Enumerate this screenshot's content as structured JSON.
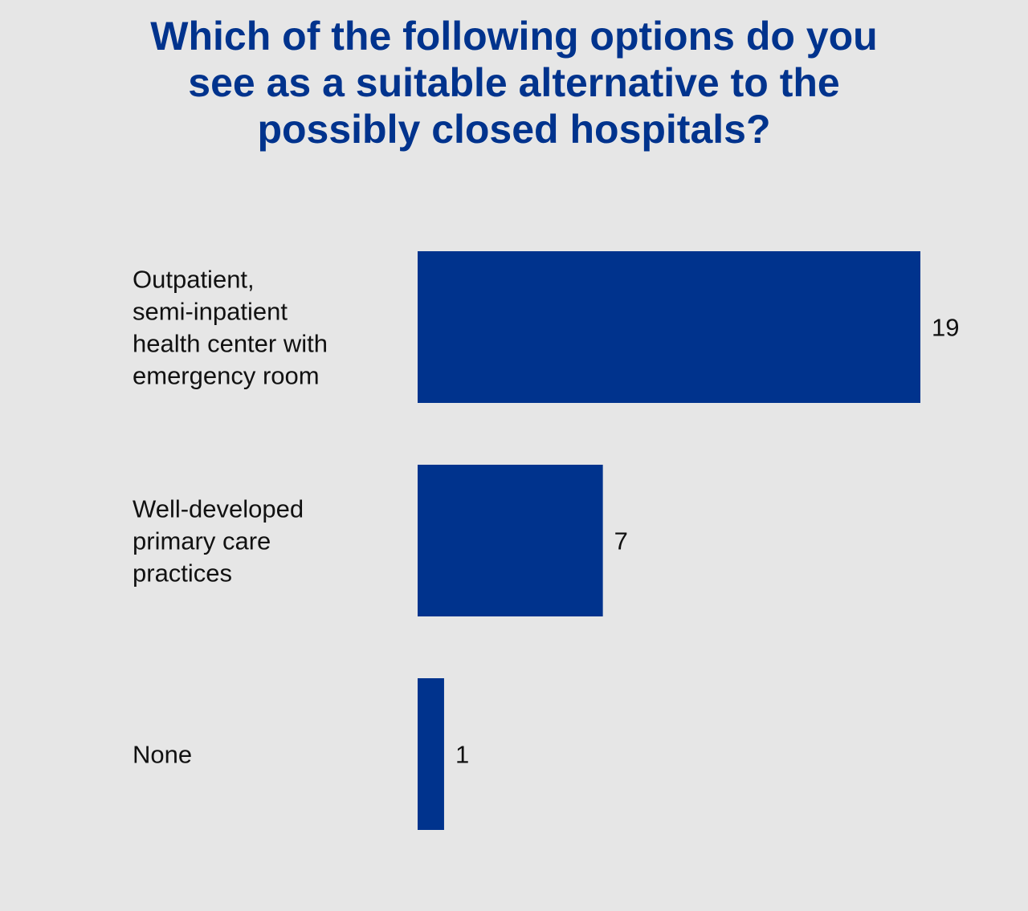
{
  "colors": {
    "background": "#e6e6e6",
    "title": "#00338d",
    "bar": "#00338d",
    "text": "#111111"
  },
  "chart_data": {
    "type": "bar",
    "orientation": "horizontal",
    "title_lines": [
      "Which of the following options do you",
      "see as a suitable alternative to the",
      "possibly closed hospitals?"
    ],
    "categories": [
      "Outpatient, semi-inpatient health center with emergency room",
      "Well-developed primary care practices",
      "None"
    ],
    "category_label_lines": [
      [
        "Outpatient,",
        "semi-inpatient",
        "health center with",
        "emergency room"
      ],
      [
        "Well-developed",
        "primary care",
        "practices"
      ],
      [
        "None"
      ]
    ],
    "values": [
      19,
      7,
      1
    ],
    "data_labels": [
      "19",
      "7",
      "1"
    ],
    "xlim": [
      0,
      19
    ],
    "grid": false,
    "legend": "none"
  }
}
